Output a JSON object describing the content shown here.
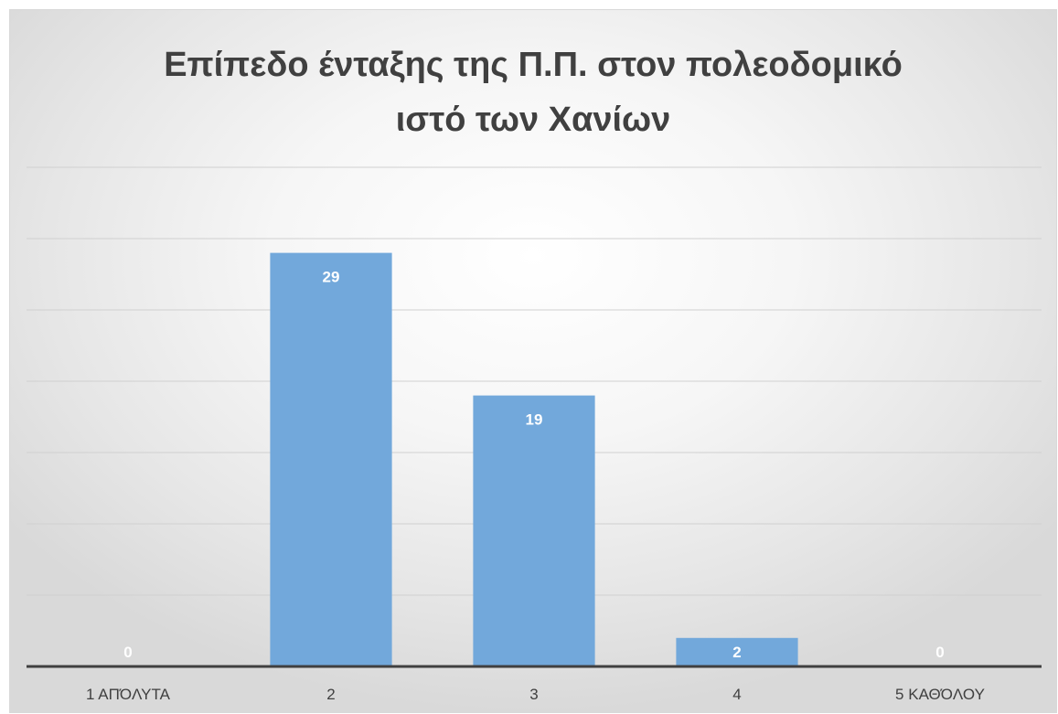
{
  "chart_data": {
    "type": "bar",
    "title": "Επίπεδο ένταξης της Π.Π. στον πολεοδομικό ιστό των Χανίων",
    "title_lines": [
      "Επίπεδο ένταξης της Π.Π. στον πολεοδομικό",
      "ιστό των Χανίων"
    ],
    "categories": [
      "1 ΑΠΌΛΥΤΑ",
      "2",
      "3",
      "4",
      "5 ΚΑΘΌΛΟΥ"
    ],
    "values": [
      0,
      29,
      19,
      2,
      0
    ],
    "ylim": [
      0,
      35
    ],
    "grid": true,
    "legend": "none",
    "bar_color": "#72a8db",
    "label_color": "#ffffff"
  }
}
